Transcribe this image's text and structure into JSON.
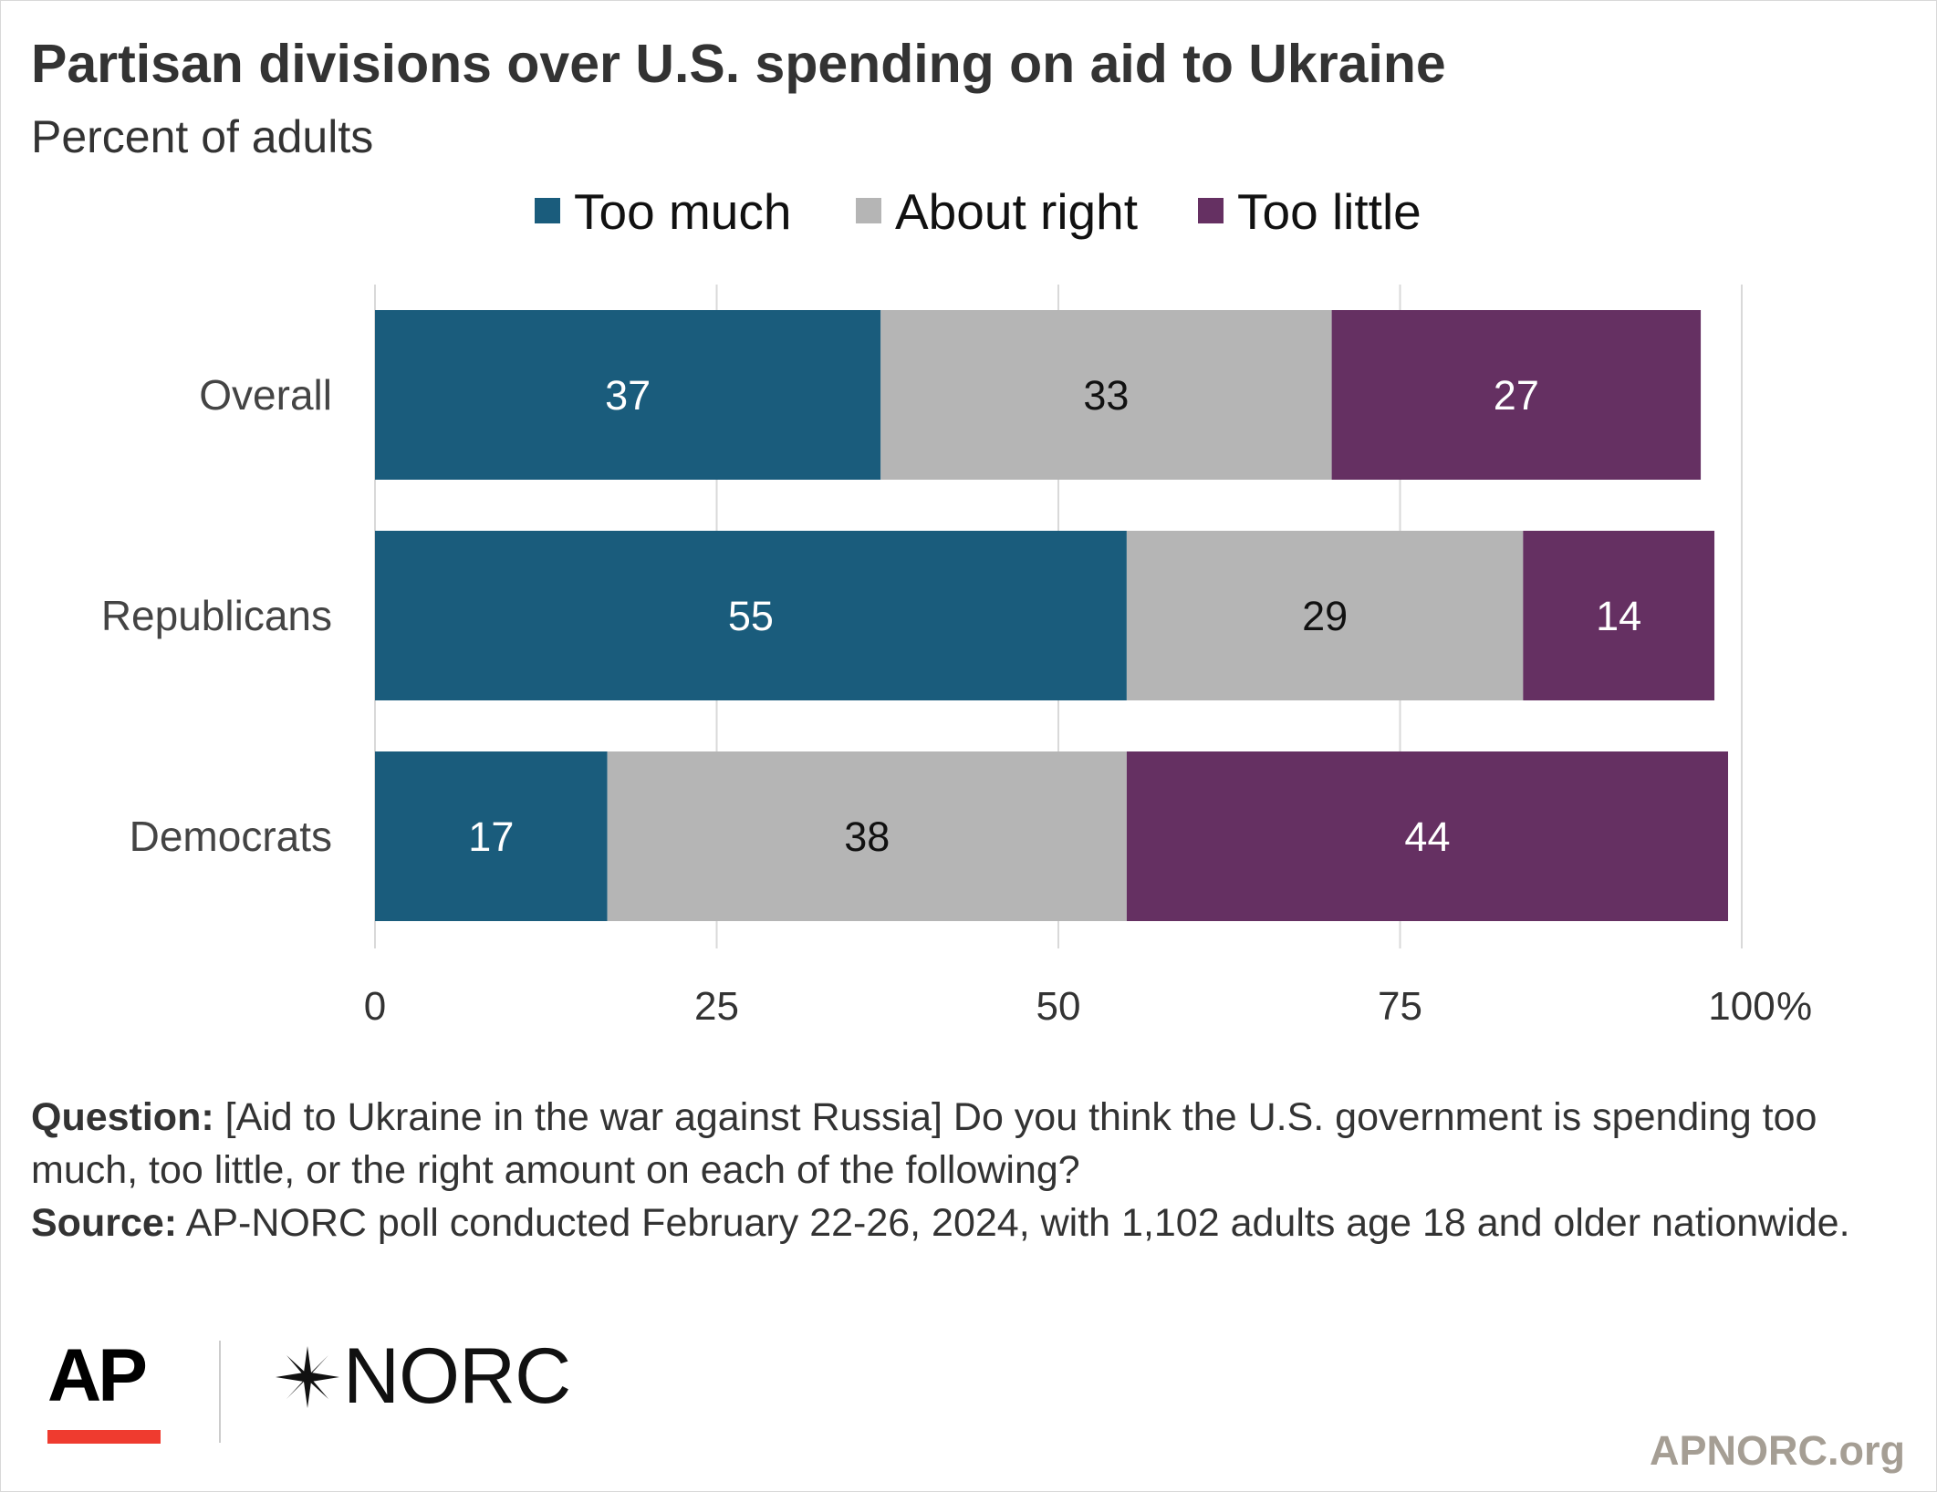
{
  "header": {
    "title": "Partisan divisions over U.S. spending on aid to Ukraine",
    "subtitle": "Percent of adults"
  },
  "colors": {
    "too_much": "#1a5c7c",
    "about_right": "#b5b5b5",
    "too_little": "#653062",
    "gridline": "#d9d9d9",
    "ap_red": "#ef3b2f"
  },
  "legend": [
    {
      "label": "Too much",
      "color": "#1a5c7c"
    },
    {
      "label": "About right",
      "color": "#b5b5b5"
    },
    {
      "label": "Too little",
      "color": "#653062"
    }
  ],
  "chart_data": {
    "type": "bar",
    "orientation": "horizontal",
    "stacked": true,
    "title": "Partisan divisions over U.S. spending on aid to Ukraine",
    "subtitle": "Percent of adults",
    "categories": [
      "Overall",
      "Republicans",
      "Democrats"
    ],
    "series": [
      {
        "name": "Too much",
        "values": [
          37,
          55,
          17
        ],
        "color": "#1a5c7c",
        "label_color": "#ffffff"
      },
      {
        "name": "About right",
        "values": [
          33,
          29,
          38
        ],
        "color": "#b5b5b5",
        "label_color": "#111111"
      },
      {
        "name": "Too little",
        "values": [
          27,
          14,
          44
        ],
        "color": "#653062",
        "label_color": "#ffffff"
      }
    ],
    "xlim": [
      0,
      100
    ],
    "ticks": [
      0,
      25,
      50,
      75,
      100
    ],
    "tick_labels": [
      "0",
      "25",
      "50",
      "75",
      "100"
    ],
    "unit": "%",
    "grid": true,
    "legend_position": "top"
  },
  "footer": {
    "question_label": "Question:",
    "question_text": " [Aid to Ukraine in the war against Russia] Do you think the U.S. government is spending too much, too little, or the right amount on each of the following?",
    "source_label": "Source:",
    "source_text": " AP-NORC poll conducted February 22-26, 2024, with 1,102 adults age 18 and older nationwide."
  },
  "logos": {
    "ap": "AP",
    "norc": "NORC",
    "norc_icon": "norc-star-icon"
  },
  "site": "APNORC.org"
}
